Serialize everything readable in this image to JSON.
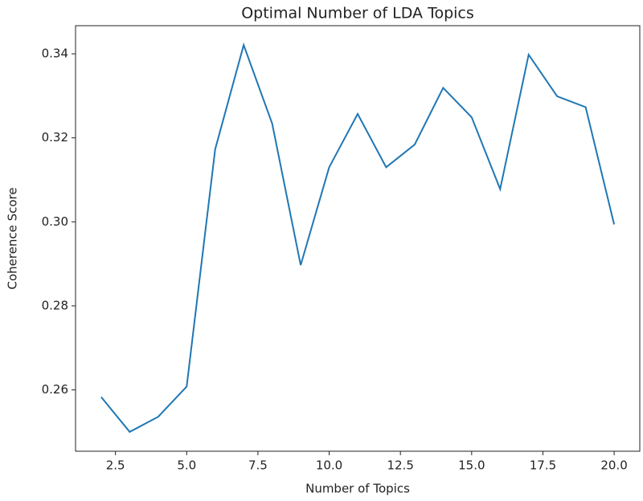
{
  "chart_data": {
    "type": "line",
    "title": "Optimal Number of LDA Topics",
    "x_label": "Number of Topics",
    "y_label": "Coherence Score",
    "x": [
      2,
      3,
      4,
      5,
      6,
      7,
      8,
      9,
      10,
      11,
      12,
      13,
      14,
      15,
      16,
      17,
      18,
      19,
      20
    ],
    "series": [
      {
        "name": "Coherence Score",
        "color": "#1f77b4",
        "values": [
          0.2583,
          0.25,
          0.2536,
          0.2608,
          0.3173,
          0.3421,
          0.3234,
          0.2897,
          0.313,
          0.3257,
          0.313,
          0.3184,
          0.3319,
          0.3249,
          0.3078,
          0.3398,
          0.3299,
          0.3273,
          0.2994
        ]
      }
    ],
    "xlim": [
      1.1,
      20.9
    ],
    "xticks": [
      2.5,
      {
        "value": 5,
        "label": "5.0"
      },
      7.5,
      {
        "value": 10,
        "label": "10.0"
      },
      12.5,
      {
        "value": 15,
        "label": "15.0"
      },
      17.5,
      {
        "value": 20,
        "label": "20.0"
      }
    ],
    "ylim": [
      0.2454,
      0.3467
    ],
    "yticks": [
      0.26,
      0.28,
      {
        "value": 0.3,
        "label": "0.30"
      },
      0.32,
      0.34
    ],
    "grid": false
  }
}
